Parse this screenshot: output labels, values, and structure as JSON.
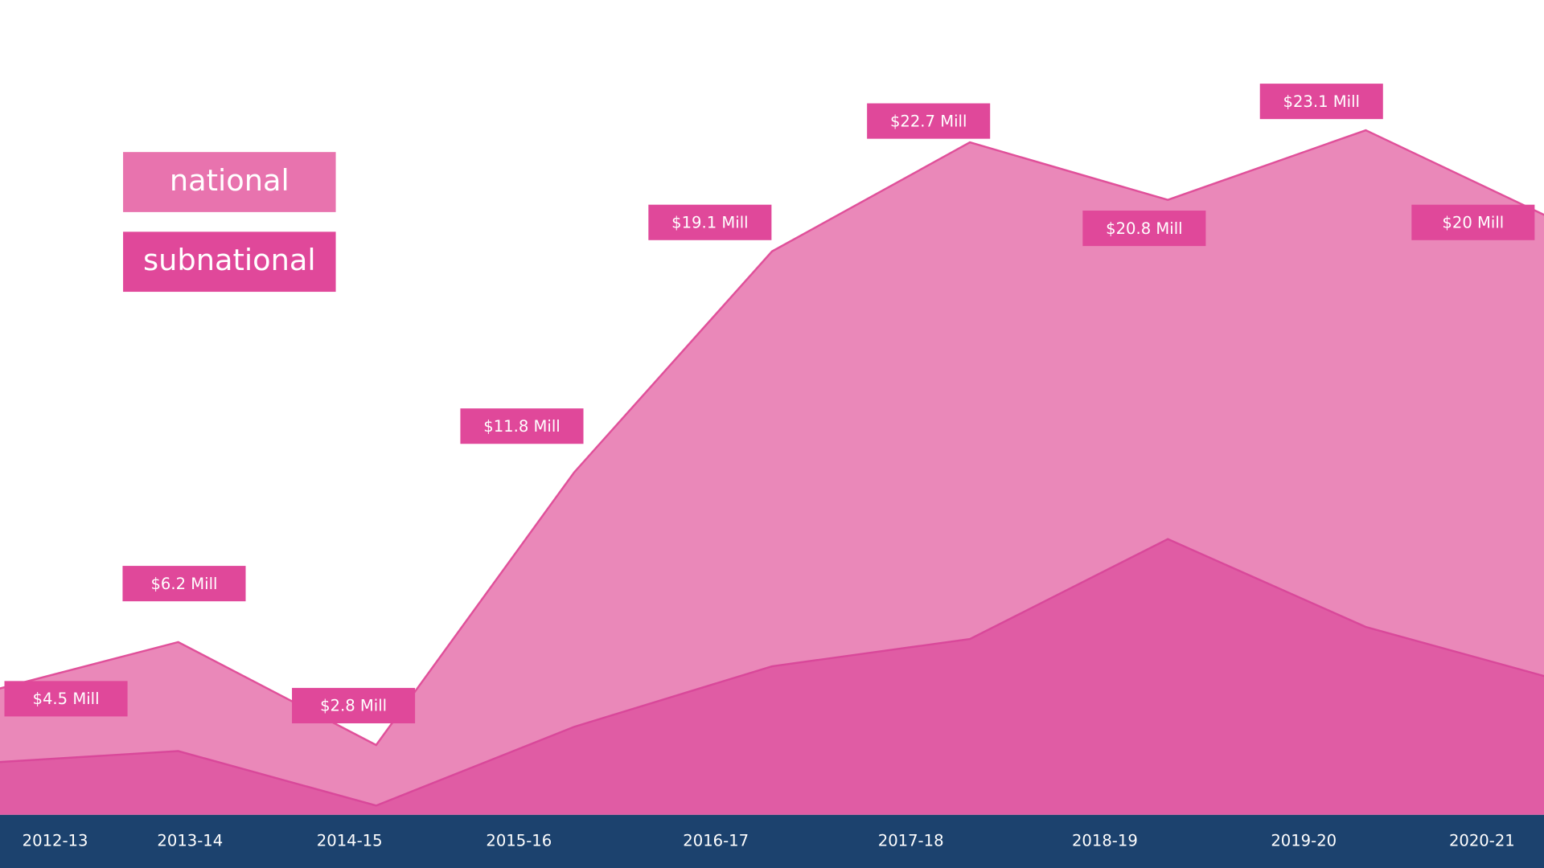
{
  "chart_data": {
    "type": "area",
    "categories": [
      "2012-13",
      "2013-14",
      "2014-15",
      "2015-16",
      "2016-17",
      "2017-18",
      "2018-19",
      "2019-20",
      "2020-21"
    ],
    "series": [
      {
        "name": "national",
        "color": "#ea88b9",
        "line_color": "#e0509a",
        "values": [
          4.5,
          6.2,
          2.8,
          11.8,
          19.1,
          22.7,
          20.8,
          23.1,
          20
        ],
        "value_labels": [
          "$4.5 Mill",
          "$6.2 Mill",
          "$2.8 Mill",
          "$11.8 Mill",
          "$19.1 Mill",
          "$22.7 Mill",
          "$20.8 Mill",
          "$23.1 Mill",
          "$20 Mill"
        ]
      },
      {
        "name": "subnational",
        "color": "#e05ca4",
        "line_color": "#d9489a",
        "values": [
          2.2,
          2.6,
          0.8,
          3.4,
          5.4,
          6.3,
          9.6,
          6.7,
          4.9
        ]
      }
    ],
    "ylim": [
      -0.5,
      27.4
    ],
    "label_color": "#e0489a",
    "axis_band_color": "#1c426e"
  }
}
